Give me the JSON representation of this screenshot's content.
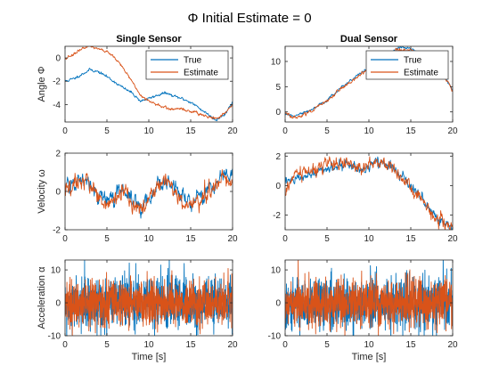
{
  "figure": {
    "title": "Φ Initial Estimate = 0"
  },
  "colors": {
    "true": "#0072BD",
    "estimate": "#D95319",
    "axis": "#262626"
  },
  "chart_data": [
    {
      "id": "single-angle",
      "type": "line",
      "title": "Single Sensor",
      "xlabel": "",
      "ylabel": "Angle Φ",
      "xlim": [
        0,
        20
      ],
      "ylim": [
        -5.5,
        1
      ],
      "xticks": [
        0,
        5,
        10,
        15,
        20
      ],
      "yticks": [
        0,
        -2,
        -4
      ],
      "legend": {
        "position": "top-right",
        "entries": [
          "True",
          "Estimate"
        ]
      },
      "series": [
        {
          "name": "True",
          "noise": 0.05,
          "x": [
            0,
            1,
            2,
            3,
            4,
            5,
            6,
            7,
            8,
            9,
            10,
            11,
            12,
            13,
            14,
            15,
            16,
            17,
            18,
            19,
            20
          ],
          "y": [
            -2,
            -1.8,
            -1.4,
            -1,
            -1.2,
            -1.6,
            -2.1,
            -2.6,
            -3,
            -3.7,
            -3.5,
            -3.2,
            -3,
            -3.3,
            -3.5,
            -3.8,
            -4.3,
            -4.8,
            -5.3,
            -4.9,
            -3.8
          ]
        },
        {
          "name": "Estimate",
          "noise": 0.05,
          "x": [
            0,
            1,
            2,
            3,
            4,
            5,
            6,
            7,
            8,
            9,
            10,
            11,
            12,
            13,
            14,
            15,
            16,
            17,
            18,
            19,
            20
          ],
          "y": [
            0,
            0.3,
            0.8,
            1,
            0.8,
            0.5,
            0,
            -0.9,
            -2,
            -3.2,
            -3.7,
            -4,
            -4.3,
            -4.4,
            -4.4,
            -4.6,
            -4.8,
            -5,
            -5.2,
            -4.8,
            -4
          ]
        }
      ]
    },
    {
      "id": "dual-angle",
      "type": "line",
      "title": "Dual Sensor",
      "xlabel": "",
      "ylabel": "",
      "xlim": [
        0,
        20
      ],
      "ylim": [
        -2,
        13
      ],
      "xticks": [
        0,
        5,
        10,
        15,
        20
      ],
      "yticks": [
        0,
        5,
        10
      ],
      "legend": {
        "position": "top-right",
        "entries": [
          "True",
          "Estimate"
        ]
      },
      "series": [
        {
          "name": "True",
          "noise": 0.12,
          "x": [
            0,
            1,
            2,
            3,
            4,
            5,
            6,
            7,
            8,
            9,
            10,
            11,
            12,
            13,
            14,
            15,
            16,
            17,
            18,
            19,
            20
          ],
          "y": [
            -0.5,
            -0.7,
            -0.3,
            0.3,
            1.2,
            2.3,
            3.8,
            5.3,
            6.5,
            7.6,
            8.6,
            9.7,
            10.8,
            12.2,
            12.8,
            12.6,
            11.5,
            10,
            8.7,
            7,
            4.5
          ]
        },
        {
          "name": "Estimate",
          "noise": 0.15,
          "x": [
            0,
            1,
            2,
            3,
            4,
            5,
            6,
            7,
            8,
            9,
            10,
            11,
            12,
            13,
            14,
            15,
            16,
            17,
            18,
            19,
            20
          ],
          "y": [
            0,
            -1.2,
            -0.7,
            0,
            1,
            2.2,
            3.6,
            5,
            6.2,
            7.4,
            8.4,
            9.5,
            10.6,
            11.8,
            12.4,
            12.3,
            11.3,
            9.8,
            8.5,
            6.8,
            4.3
          ]
        }
      ]
    },
    {
      "id": "single-velocity",
      "type": "line",
      "title": "",
      "xlabel": "",
      "ylabel": "Velocity ω",
      "xlim": [
        0,
        20
      ],
      "ylim": [
        -2,
        2
      ],
      "xticks": [
        0,
        5,
        10,
        15,
        20
      ],
      "yticks": [
        2,
        0,
        -2
      ],
      "series": [
        {
          "name": "True",
          "noise": 0.18,
          "x": [
            0,
            1,
            2,
            3,
            4,
            5,
            6,
            7,
            8,
            9,
            10,
            11,
            12,
            13,
            14,
            15,
            16,
            17,
            18,
            19,
            20
          ],
          "y": [
            0,
            0.4,
            0.6,
            0.3,
            -0.2,
            -0.5,
            -0.2,
            0.2,
            -0.4,
            -0.9,
            -0.3,
            0.3,
            0.6,
            0.2,
            -0.3,
            -0.5,
            -0.4,
            0,
            0.4,
            0.9,
            0.7
          ]
        },
        {
          "name": "Estimate",
          "noise": 0.2,
          "x": [
            0,
            1,
            2,
            3,
            4,
            5,
            6,
            7,
            8,
            9,
            10,
            11,
            12,
            13,
            14,
            15,
            16,
            17,
            18,
            19,
            20
          ],
          "y": [
            -0.1,
            0.3,
            0.7,
            0.2,
            -0.3,
            -0.7,
            -0.4,
            0.1,
            -0.6,
            -1.1,
            -0.5,
            0.2,
            0.5,
            0,
            -0.5,
            -0.7,
            -0.6,
            -0.1,
            0.3,
            0.8,
            0.6
          ]
        }
      ]
    },
    {
      "id": "dual-velocity",
      "type": "line",
      "title": "",
      "xlabel": "",
      "ylabel": "",
      "xlim": [
        0,
        20
      ],
      "ylim": [
        -3,
        2.2
      ],
      "xticks": [
        0,
        5,
        10,
        15,
        20
      ],
      "yticks": [
        2,
        0,
        -2
      ],
      "series": [
        {
          "name": "True",
          "noise": 0.15,
          "x": [
            0,
            1,
            2,
            3,
            4,
            5,
            6,
            7,
            8,
            9,
            10,
            11,
            12,
            13,
            14,
            15,
            16,
            17,
            18,
            19,
            20
          ],
          "y": [
            0.2,
            0.4,
            0.6,
            0.8,
            1,
            1.2,
            1.3,
            1.5,
            1.2,
            1,
            1.4,
            1.6,
            1.5,
            1.1,
            0.7,
            0,
            -0.6,
            -1.4,
            -2.1,
            -2.6,
            -2.8
          ]
        },
        {
          "name": "Estimate",
          "noise": 0.2,
          "x": [
            0,
            1,
            2,
            3,
            4,
            5,
            6,
            7,
            8,
            9,
            10,
            11,
            12,
            13,
            14,
            15,
            16,
            17,
            18,
            19,
            20
          ],
          "y": [
            -0.6,
            0.6,
            0.8,
            1,
            1.2,
            1.4,
            1.5,
            1.6,
            1.3,
            1.1,
            1.5,
            1.7,
            1.5,
            1.1,
            0.6,
            -0.1,
            -0.7,
            -1.5,
            -2.2,
            -2.6,
            -2.7
          ]
        }
      ]
    },
    {
      "id": "single-acceleration",
      "type": "line",
      "title": "",
      "xlabel": "Time [s]",
      "ylabel": "Acceleration α",
      "xlim": [
        0,
        20
      ],
      "ylim": [
        -10,
        13
      ],
      "xticks": [
        0,
        5,
        10,
        15,
        20
      ],
      "yticks": [
        10,
        0,
        -10
      ],
      "series": [
        {
          "name": "True",
          "noise": 4,
          "x": [
            0,
            20
          ],
          "y": [
            0,
            0
          ]
        },
        {
          "name": "Estimate",
          "noise": 3.6,
          "x": [
            0,
            20
          ],
          "y": [
            0,
            0
          ]
        }
      ]
    },
    {
      "id": "dual-acceleration",
      "type": "line",
      "title": "",
      "xlabel": "Time [s]",
      "ylabel": "",
      "xlim": [
        0,
        20
      ],
      "ylim": [
        -10,
        13
      ],
      "xticks": [
        0,
        5,
        10,
        15,
        20
      ],
      "yticks": [
        10,
        0,
        -10
      ],
      "series": [
        {
          "name": "True",
          "noise": 4,
          "x": [
            0,
            20
          ],
          "y": [
            0,
            0
          ]
        },
        {
          "name": "Estimate",
          "noise": 3.6,
          "x": [
            0,
            20
          ],
          "y": [
            0,
            0
          ]
        }
      ]
    }
  ]
}
